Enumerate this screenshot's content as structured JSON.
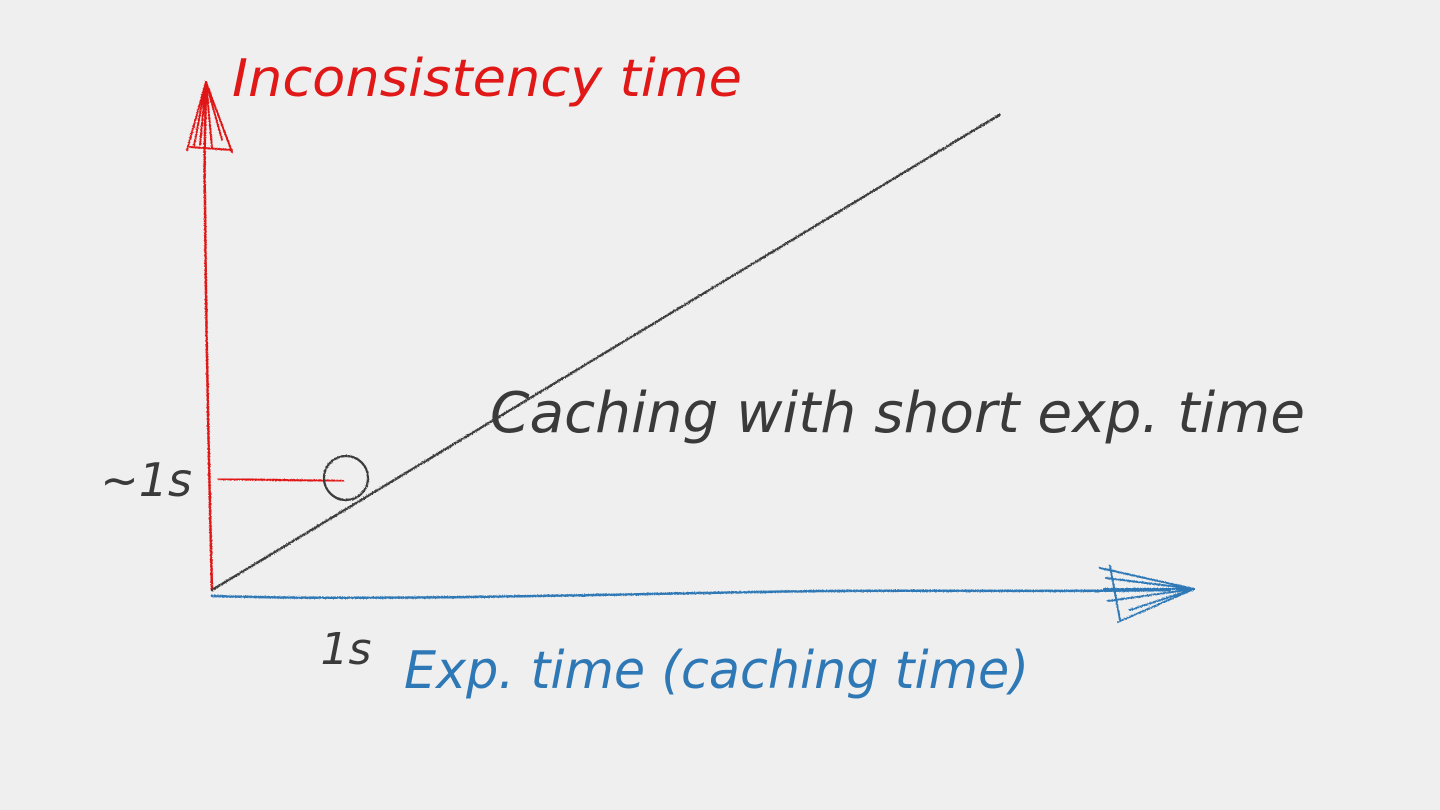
{
  "chart_data": {
    "type": "line",
    "xlabel": "Exp. time (caching time)",
    "ylabel": "Inconsistency time",
    "series": [
      {
        "name": "Caching with short exp. time",
        "x": [
          0,
          6.25
        ],
        "y": [
          0,
          4.4
        ]
      }
    ],
    "x_tick_labels": [
      {
        "x": 1,
        "label": "1s"
      }
    ],
    "y_tick_labels": [
      {
        "y": 1,
        "label": "~1s"
      }
    ],
    "highlight_point": {
      "x": 1,
      "y": 1
    },
    "xlim": [
      0,
      7.3
    ],
    "ylim": [
      0,
      4.8
    ],
    "grid": false,
    "colors": {
      "background": "#efefef",
      "x_axis": "#2f78b6",
      "y_axis": "#e01818",
      "line": "#3a3a3a",
      "text": "#3a3a3a"
    }
  }
}
